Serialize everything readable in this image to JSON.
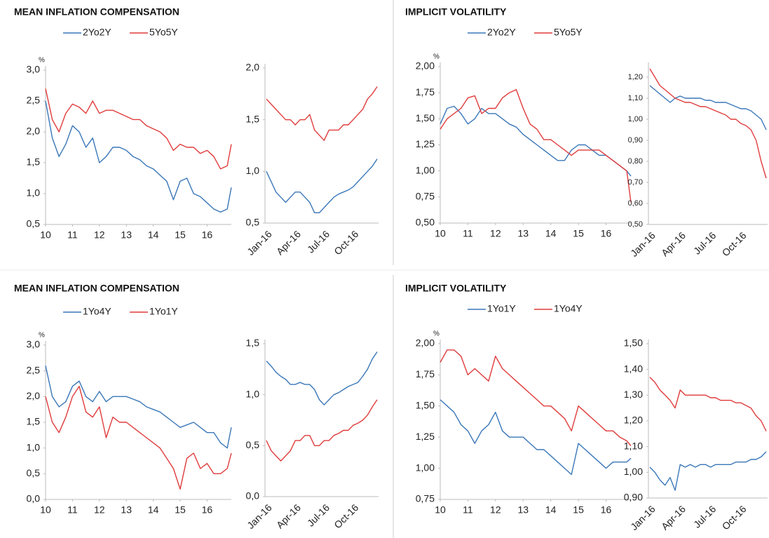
{
  "chart_data": [
    {
      "type": "line",
      "title": "MEAN INFLATION COMPENSATION",
      "y_unit": "%",
      "x": [
        10,
        10.25,
        10.5,
        10.75,
        11,
        11.25,
        11.5,
        11.75,
        12,
        12.25,
        12.5,
        12.75,
        13,
        13.25,
        13.5,
        13.75,
        14,
        14.25,
        14.5,
        14.75,
        15,
        15.25,
        15.5,
        15.75,
        16,
        16.25,
        16.5,
        16.75,
        16.9
      ],
      "xlim": [
        10,
        16.9
      ],
      "xticks": [
        10,
        11,
        12,
        13,
        14,
        15,
        16
      ],
      "ylim": [
        0.5,
        3.0
      ],
      "yticks": [
        {
          "value": 0.5,
          "label": "0,5"
        },
        {
          "value": 1.0,
          "label": "1,0"
        },
        {
          "value": 1.5,
          "label": "1,5"
        },
        {
          "value": 2.0,
          "label": "2,0"
        },
        {
          "value": 2.5,
          "label": "2,5"
        },
        {
          "value": 3.0,
          "label": "3,0"
        }
      ],
      "series": [
        {
          "name": "2Yo2Y",
          "color": "#3a77b8",
          "values": [
            2.5,
            1.9,
            1.6,
            1.8,
            2.1,
            2.0,
            1.75,
            1.9,
            1.5,
            1.6,
            1.75,
            1.75,
            1.7,
            1.6,
            1.55,
            1.45,
            1.4,
            1.3,
            1.2,
            0.9,
            1.2,
            1.25,
            1.0,
            0.95,
            0.85,
            0.75,
            0.7,
            0.75,
            1.1
          ]
        },
        {
          "name": "5Yo5Y",
          "color": "#e03b3b",
          "values": [
            2.7,
            2.2,
            2.0,
            2.3,
            2.45,
            2.4,
            2.3,
            2.5,
            2.3,
            2.35,
            2.35,
            2.3,
            2.25,
            2.2,
            2.2,
            2.1,
            2.05,
            2.0,
            1.9,
            1.7,
            1.8,
            1.75,
            1.75,
            1.65,
            1.7,
            1.6,
            1.4,
            1.45,
            1.8
          ]
        }
      ]
    },
    {
      "type": "line",
      "categories": [
        "Jan-16",
        null,
        null,
        null,
        null,
        null,
        "Apr-16",
        null,
        null,
        null,
        null,
        null,
        "Jul-16",
        null,
        null,
        null,
        null,
        null,
        "Oct-16",
        null,
        null,
        null,
        null,
        null
      ],
      "ylim": [
        0.5,
        2.0
      ],
      "yticks": [
        {
          "value": 0.5,
          "label": "0,5"
        },
        {
          "value": 1.0,
          "label": "1,0"
        },
        {
          "value": 1.5,
          "label": "1,5"
        },
        {
          "value": 2.0,
          "label": "2,0"
        }
      ],
      "series": [
        {
          "color": "#3a77b8",
          "values": [
            1.0,
            0.9,
            0.8,
            0.75,
            0.7,
            0.75,
            0.8,
            0.8,
            0.75,
            0.7,
            0.6,
            0.6,
            0.65,
            0.7,
            0.75,
            0.78,
            0.8,
            0.82,
            0.85,
            0.9,
            0.95,
            1.0,
            1.05,
            1.12
          ]
        },
        {
          "color": "#e03b3b",
          "values": [
            1.7,
            1.65,
            1.6,
            1.55,
            1.5,
            1.5,
            1.45,
            1.5,
            1.5,
            1.55,
            1.4,
            1.35,
            1.3,
            1.4,
            1.4,
            1.4,
            1.45,
            1.45,
            1.5,
            1.55,
            1.6,
            1.7,
            1.75,
            1.82
          ]
        }
      ]
    },
    {
      "type": "line",
      "title": "IMPLICIT VOLATILITY",
      "y_unit": "%",
      "x": [
        10,
        10.25,
        10.5,
        10.75,
        11,
        11.25,
        11.5,
        11.75,
        12,
        12.25,
        12.5,
        12.75,
        13,
        13.25,
        13.5,
        13.75,
        14,
        14.25,
        14.5,
        14.75,
        15,
        15.25,
        15.5,
        15.75,
        16,
        16.25,
        16.5,
        16.75,
        16.9
      ],
      "xlim": [
        10,
        16.9
      ],
      "xticks": [
        10,
        11,
        12,
        13,
        14,
        15,
        16
      ],
      "ylim": [
        0.5,
        2.0
      ],
      "yticks": [
        {
          "value": 0.5,
          "label": "0,50"
        },
        {
          "value": 0.75,
          "label": "0,75"
        },
        {
          "value": 1.0,
          "label": "1,00"
        },
        {
          "value": 1.25,
          "label": "1,25"
        },
        {
          "value": 1.5,
          "label": "1,50"
        },
        {
          "value": 1.75,
          "label": "1,75"
        },
        {
          "value": 2.0,
          "label": "2,00"
        }
      ],
      "series": [
        {
          "name": "2Yo2Y",
          "color": "#3a77b8",
          "values": [
            1.45,
            1.6,
            1.62,
            1.55,
            1.45,
            1.5,
            1.6,
            1.55,
            1.55,
            1.5,
            1.45,
            1.42,
            1.35,
            1.3,
            1.25,
            1.2,
            1.15,
            1.1,
            1.1,
            1.2,
            1.25,
            1.25,
            1.2,
            1.15,
            1.15,
            1.1,
            1.05,
            1.0,
            0.95
          ]
        },
        {
          "name": "5Yo5Y",
          "color": "#e03b3b",
          "values": [
            1.4,
            1.5,
            1.55,
            1.6,
            1.7,
            1.72,
            1.55,
            1.6,
            1.6,
            1.7,
            1.75,
            1.78,
            1.6,
            1.45,
            1.4,
            1.3,
            1.3,
            1.25,
            1.2,
            1.15,
            1.2,
            1.2,
            1.2,
            1.2,
            1.15,
            1.1,
            1.05,
            1.0,
            0.7
          ]
        }
      ]
    },
    {
      "type": "line",
      "categories": [
        "Jan-16",
        null,
        null,
        null,
        null,
        null,
        "Apr-16",
        null,
        null,
        null,
        null,
        null,
        "Jul-16",
        null,
        null,
        null,
        null,
        null,
        "Oct-16",
        null,
        null,
        null,
        null,
        null
      ],
      "ylim": [
        0.5,
        1.25
      ],
      "yticks": [
        {
          "value": 0.5,
          "label": "0,50"
        },
        {
          "value": 0.6,
          "label": "0,60"
        },
        {
          "value": 0.7,
          "label": "0,70"
        },
        {
          "value": 0.8,
          "label": "0,80"
        },
        {
          "value": 0.9,
          "label": "0,90"
        },
        {
          "value": 1.0,
          "label": "1,00"
        },
        {
          "value": 1.1,
          "label": "1,10"
        },
        {
          "value": 1.2,
          "label": "1,20"
        }
      ],
      "series": [
        {
          "color": "#3a77b8",
          "values": [
            1.16,
            1.14,
            1.12,
            1.1,
            1.08,
            1.1,
            1.11,
            1.1,
            1.1,
            1.1,
            1.1,
            1.09,
            1.09,
            1.08,
            1.08,
            1.08,
            1.07,
            1.06,
            1.05,
            1.05,
            1.04,
            1.02,
            1.0,
            0.95
          ]
        },
        {
          "color": "#e03b3b",
          "values": [
            1.24,
            1.2,
            1.16,
            1.14,
            1.12,
            1.1,
            1.09,
            1.08,
            1.08,
            1.07,
            1.06,
            1.06,
            1.05,
            1.04,
            1.03,
            1.02,
            1.0,
            1.0,
            0.98,
            0.97,
            0.95,
            0.9,
            0.8,
            0.72
          ]
        }
      ]
    },
    {
      "type": "line",
      "title": "MEAN INFLATION COMPENSATION",
      "y_unit": "%",
      "x": [
        10,
        10.25,
        10.5,
        10.75,
        11,
        11.25,
        11.5,
        11.75,
        12,
        12.25,
        12.5,
        12.75,
        13,
        13.25,
        13.5,
        13.75,
        14,
        14.25,
        14.5,
        14.75,
        15,
        15.25,
        15.5,
        15.75,
        16,
        16.25,
        16.5,
        16.75,
        16.9
      ],
      "xlim": [
        10,
        16.9
      ],
      "xticks": [
        10,
        11,
        12,
        13,
        14,
        15,
        16
      ],
      "ylim": [
        0.0,
        3.0
      ],
      "yticks": [
        {
          "value": 0.0,
          "label": "0,0"
        },
        {
          "value": 0.5,
          "label": "0,5"
        },
        {
          "value": 1.0,
          "label": "1,0"
        },
        {
          "value": 1.5,
          "label": "1,5"
        },
        {
          "value": 2.0,
          "label": "2,0"
        },
        {
          "value": 2.5,
          "label": "2,5"
        },
        {
          "value": 3.0,
          "label": "3,0"
        }
      ],
      "series": [
        {
          "name": "1Yo4Y",
          "color": "#3a77b8",
          "values": [
            2.6,
            2.0,
            1.8,
            1.9,
            2.2,
            2.3,
            2.0,
            1.9,
            2.1,
            1.9,
            2.0,
            2.0,
            2.0,
            1.95,
            1.9,
            1.8,
            1.75,
            1.7,
            1.6,
            1.5,
            1.4,
            1.45,
            1.5,
            1.4,
            1.3,
            1.3,
            1.1,
            1.0,
            1.4
          ]
        },
        {
          "name": "1Yo1Y",
          "color": "#e03b3b",
          "values": [
            2.0,
            1.5,
            1.3,
            1.6,
            2.0,
            2.2,
            1.7,
            1.6,
            1.8,
            1.2,
            1.6,
            1.5,
            1.5,
            1.4,
            1.3,
            1.2,
            1.1,
            1.0,
            0.8,
            0.6,
            0.2,
            0.8,
            0.9,
            0.6,
            0.7,
            0.5,
            0.5,
            0.6,
            0.9
          ]
        }
      ]
    },
    {
      "type": "line",
      "categories": [
        "Jan-16",
        null,
        null,
        null,
        null,
        null,
        "Apr-16",
        null,
        null,
        null,
        null,
        null,
        "Jul-16",
        null,
        null,
        null,
        null,
        null,
        "Oct-16",
        null,
        null,
        null,
        null,
        null
      ],
      "ylim": [
        0.0,
        1.5
      ],
      "yticks": [
        {
          "value": 0.0,
          "label": "0,0"
        },
        {
          "value": 0.5,
          "label": "0,5"
        },
        {
          "value": 1.0,
          "label": "1,0"
        },
        {
          "value": 1.5,
          "label": "1,5"
        }
      ],
      "series": [
        {
          "color": "#3a77b8",
          "values": [
            1.33,
            1.28,
            1.22,
            1.18,
            1.15,
            1.1,
            1.1,
            1.12,
            1.1,
            1.1,
            1.05,
            0.95,
            0.9,
            0.95,
            1.0,
            1.02,
            1.05,
            1.08,
            1.1,
            1.12,
            1.18,
            1.25,
            1.35,
            1.42
          ]
        },
        {
          "color": "#e03b3b",
          "values": [
            0.55,
            0.45,
            0.4,
            0.35,
            0.4,
            0.45,
            0.55,
            0.55,
            0.6,
            0.6,
            0.5,
            0.5,
            0.55,
            0.55,
            0.6,
            0.62,
            0.65,
            0.65,
            0.7,
            0.72,
            0.75,
            0.8,
            0.88,
            0.95
          ]
        }
      ]
    },
    {
      "type": "line",
      "title": "IMPLICIT VOLATILITY",
      "y_unit": "%",
      "x": [
        10,
        10.25,
        10.5,
        10.75,
        11,
        11.25,
        11.5,
        11.75,
        12,
        12.25,
        12.5,
        12.75,
        13,
        13.25,
        13.5,
        13.75,
        14,
        14.25,
        14.5,
        14.75,
        15,
        15.25,
        15.5,
        15.75,
        16,
        16.25,
        16.5,
        16.75,
        16.9
      ],
      "xlim": [
        10,
        16.9
      ],
      "xticks": [
        10,
        11,
        12,
        13,
        14,
        15,
        16
      ],
      "ylim": [
        0.75,
        2.0
      ],
      "yticks": [
        {
          "value": 0.75,
          "label": "0,75"
        },
        {
          "value": 1.0,
          "label": "1,00"
        },
        {
          "value": 1.25,
          "label": "1,25"
        },
        {
          "value": 1.5,
          "label": "1,50"
        },
        {
          "value": 1.75,
          "label": "1,75"
        },
        {
          "value": 2.0,
          "label": "2,00"
        }
      ],
      "series": [
        {
          "name": "1Yo1Y",
          "color": "#3a77b8",
          "values": [
            1.55,
            1.5,
            1.45,
            1.35,
            1.3,
            1.2,
            1.3,
            1.35,
            1.45,
            1.3,
            1.25,
            1.25,
            1.25,
            1.2,
            1.15,
            1.15,
            1.1,
            1.05,
            1.0,
            0.95,
            1.2,
            1.15,
            1.1,
            1.05,
            1.0,
            1.05,
            1.05,
            1.05,
            1.08
          ]
        },
        {
          "name": "1Yo4Y",
          "color": "#e03b3b",
          "values": [
            1.85,
            1.95,
            1.95,
            1.9,
            1.75,
            1.8,
            1.75,
            1.7,
            1.9,
            1.8,
            1.75,
            1.7,
            1.65,
            1.6,
            1.55,
            1.5,
            1.5,
            1.45,
            1.4,
            1.3,
            1.5,
            1.45,
            1.4,
            1.35,
            1.3,
            1.3,
            1.25,
            1.22,
            1.18
          ]
        }
      ]
    },
    {
      "type": "line",
      "categories": [
        "Jan-16",
        null,
        null,
        null,
        null,
        null,
        "Apr-16",
        null,
        null,
        null,
        null,
        null,
        "Jul-16",
        null,
        null,
        null,
        null,
        null,
        "Oct-16",
        null,
        null,
        null,
        null,
        null
      ],
      "ylim": [
        0.9,
        1.5
      ],
      "yticks": [
        {
          "value": 0.9,
          "label": "0,90"
        },
        {
          "value": 1.0,
          "label": "1,00"
        },
        {
          "value": 1.1,
          "label": "1,10"
        },
        {
          "value": 1.2,
          "label": "1,20"
        },
        {
          "value": 1.3,
          "label": "1,30"
        },
        {
          "value": 1.4,
          "label": "1,40"
        },
        {
          "value": 1.5,
          "label": "1,50"
        }
      ],
      "series": [
        {
          "color": "#3a77b8",
          "values": [
            1.02,
            1.0,
            0.97,
            0.95,
            0.98,
            0.93,
            1.03,
            1.02,
            1.03,
            1.02,
            1.03,
            1.03,
            1.02,
            1.03,
            1.03,
            1.03,
            1.03,
            1.04,
            1.04,
            1.04,
            1.05,
            1.05,
            1.06,
            1.08
          ]
        },
        {
          "color": "#e03b3b",
          "values": [
            1.37,
            1.35,
            1.32,
            1.3,
            1.28,
            1.25,
            1.32,
            1.3,
            1.3,
            1.3,
            1.3,
            1.3,
            1.29,
            1.29,
            1.28,
            1.28,
            1.28,
            1.27,
            1.27,
            1.26,
            1.25,
            1.22,
            1.2,
            1.16
          ]
        }
      ]
    }
  ]
}
